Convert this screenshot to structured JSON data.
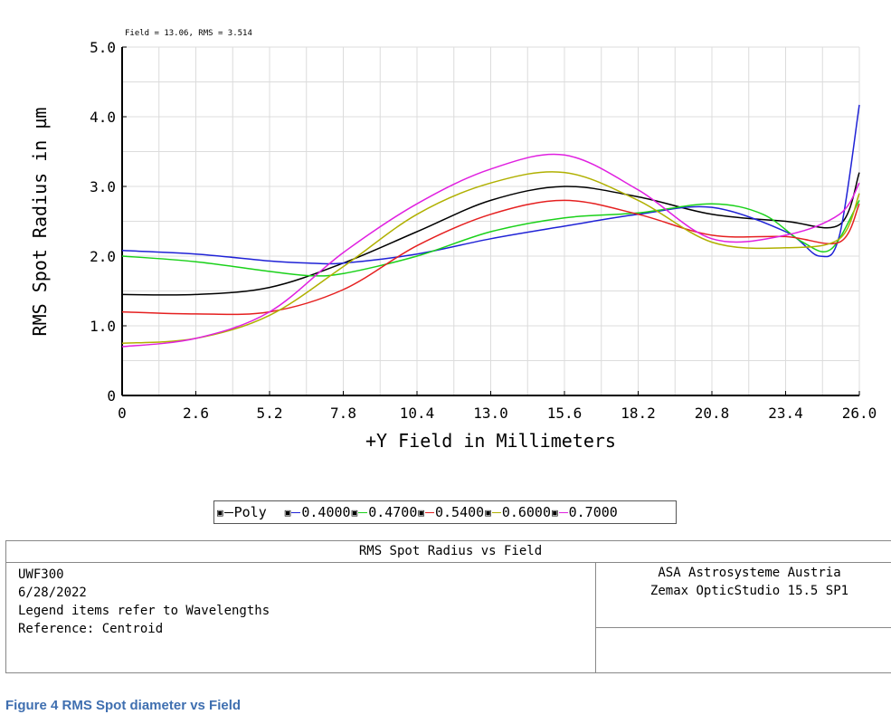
{
  "chart_data": {
    "type": "line",
    "annotation": "Field = 13.06, RMS = 3.514",
    "xlabel": "+Y Field in Millimeters",
    "ylabel": "RMS Spot Radius in µm",
    "xlim": [
      0,
      26
    ],
    "ylim": [
      0,
      5
    ],
    "xticks": [
      "0",
      "2.6",
      "5.2",
      "7.8",
      "10.4",
      "13.0",
      "15.6",
      "18.2",
      "20.8",
      "23.4",
      "26.0"
    ],
    "yticks": [
      "0",
      "1.0",
      "2.0",
      "3.0",
      "4.0",
      "5.0"
    ],
    "grid": true,
    "legend_position": "bottom",
    "series": [
      {
        "name": "Poly",
        "color": "#000000",
        "points": [
          [
            0,
            1.45
          ],
          [
            2.6,
            1.45
          ],
          [
            5.2,
            1.55
          ],
          [
            7.8,
            1.9
          ],
          [
            10.4,
            2.35
          ],
          [
            13.0,
            2.8
          ],
          [
            15.6,
            3.0
          ],
          [
            18.2,
            2.85
          ],
          [
            20.8,
            2.6
          ],
          [
            23.4,
            2.5
          ],
          [
            25.3,
            2.45
          ],
          [
            26.0,
            3.2
          ]
        ]
      },
      {
        "name": "0.4000",
        "color": "#1f22d6",
        "points": [
          [
            0,
            2.08
          ],
          [
            2.6,
            2.03
          ],
          [
            5.2,
            1.93
          ],
          [
            6.6,
            1.9
          ],
          [
            7.8,
            1.9
          ],
          [
            10.4,
            2.03
          ],
          [
            13.0,
            2.25
          ],
          [
            15.6,
            2.43
          ],
          [
            18.2,
            2.6
          ],
          [
            20.8,
            2.7
          ],
          [
            23.4,
            2.35
          ],
          [
            24.6,
            2.0
          ],
          [
            25.3,
            2.3
          ],
          [
            26.0,
            4.17
          ]
        ]
      },
      {
        "name": "0.4700",
        "color": "#1ad11a",
        "points": [
          [
            0,
            2.0
          ],
          [
            2.6,
            1.92
          ],
          [
            5.2,
            1.78
          ],
          [
            6.6,
            1.72
          ],
          [
            7.8,
            1.75
          ],
          [
            10.4,
            2.0
          ],
          [
            13.0,
            2.35
          ],
          [
            15.6,
            2.55
          ],
          [
            18.2,
            2.62
          ],
          [
            20.8,
            2.75
          ],
          [
            22.6,
            2.6
          ],
          [
            24.0,
            2.2
          ],
          [
            25.0,
            2.1
          ],
          [
            26.0,
            2.8
          ]
        ]
      },
      {
        "name": "0.5400",
        "color": "#e52020",
        "points": [
          [
            0,
            1.2
          ],
          [
            2.6,
            1.17
          ],
          [
            5.2,
            1.2
          ],
          [
            7.8,
            1.52
          ],
          [
            10.4,
            2.15
          ],
          [
            13.0,
            2.6
          ],
          [
            15.6,
            2.8
          ],
          [
            18.2,
            2.6
          ],
          [
            20.8,
            2.3
          ],
          [
            23.4,
            2.28
          ],
          [
            25.3,
            2.2
          ],
          [
            26.0,
            2.75
          ]
        ]
      },
      {
        "name": "0.6000",
        "color": "#b0b000",
        "points": [
          [
            0,
            0.75
          ],
          [
            2.6,
            0.82
          ],
          [
            5.2,
            1.15
          ],
          [
            7.8,
            1.85
          ],
          [
            10.4,
            2.6
          ],
          [
            13.0,
            3.05
          ],
          [
            15.6,
            3.2
          ],
          [
            18.2,
            2.8
          ],
          [
            20.8,
            2.2
          ],
          [
            23.4,
            2.12
          ],
          [
            25.3,
            2.25
          ],
          [
            26.0,
            2.9
          ]
        ]
      },
      {
        "name": "0.7000",
        "color": "#e020e0",
        "points": [
          [
            0,
            0.7
          ],
          [
            2.6,
            0.82
          ],
          [
            5.2,
            1.2
          ],
          [
            7.8,
            2.05
          ],
          [
            10.4,
            2.75
          ],
          [
            13.0,
            3.25
          ],
          [
            15.6,
            3.45
          ],
          [
            18.2,
            2.95
          ],
          [
            20.8,
            2.25
          ],
          [
            23.4,
            2.3
          ],
          [
            25.3,
            2.6
          ],
          [
            26.0,
            3.05
          ]
        ]
      }
    ]
  },
  "legend": {
    "items": [
      {
        "label": "Poly",
        "color": "#000000"
      },
      {
        "label": "0.4000",
        "color": "#1f22d6"
      },
      {
        "label": "0.4700",
        "color": "#1ad11a"
      },
      {
        "label": "0.5400",
        "color": "#e52020"
      },
      {
        "label": "0.6000",
        "color": "#b0b000"
      },
      {
        "label": "0.7000",
        "color": "#e020e0"
      }
    ],
    "marker": "▣"
  },
  "info": {
    "title": "RMS Spot Radius vs Field",
    "left_lines": [
      "UWF300",
      "6/28/2022",
      "Legend items refer to Wavelengths",
      "Reference: Centroid"
    ],
    "right_lines": [
      "ASA Astrosysteme Austria",
      "Zemax OpticStudio 15.5 SP1"
    ]
  },
  "caption": "Figure 4 RMS Spot diameter vs Field"
}
